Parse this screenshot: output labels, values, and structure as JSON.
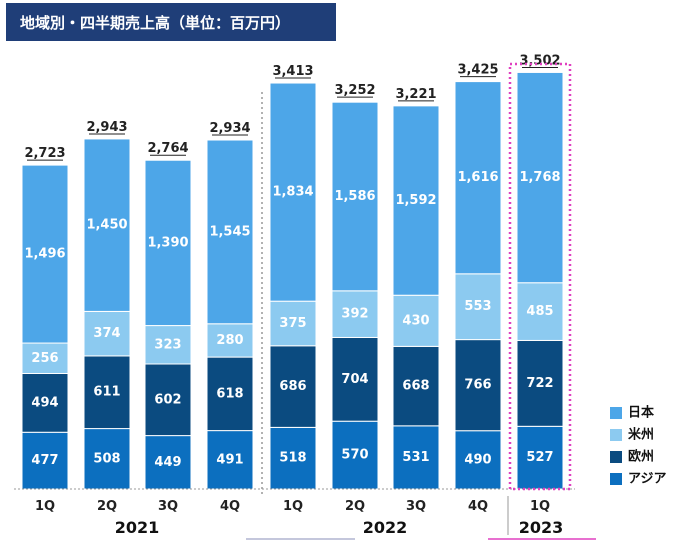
{
  "title": "地域別・四半期売上高（単位：百万円）",
  "colors": {
    "japan": "#4da6e8",
    "americas": "#8ccaf0",
    "europe": "#0b4b80",
    "asia": "#0c6fbf",
    "highlight": "#e040c0",
    "title_bg": "#1f3e78"
  },
  "chart_data": {
    "type": "bar",
    "stacked": true,
    "title": "地域別・四半期売上高（単位：百万円）",
    "categories": [
      "1Q",
      "2Q",
      "3Q",
      "4Q",
      "1Q",
      "2Q",
      "3Q",
      "4Q",
      "1Q"
    ],
    "years": [
      {
        "label": "2021",
        "quarters": 4
      },
      {
        "label": "2022",
        "quarters": 4
      },
      {
        "label": "2023",
        "quarters": 1
      }
    ],
    "series": [
      {
        "name": "アジア",
        "values": [
          477,
          508,
          449,
          491,
          518,
          570,
          531,
          490,
          527
        ]
      },
      {
        "name": "欧州",
        "values": [
          494,
          611,
          602,
          618,
          686,
          704,
          668,
          766,
          722
        ]
      },
      {
        "name": "米州",
        "values": [
          256,
          374,
          323,
          280,
          375,
          392,
          430,
          553,
          485
        ]
      },
      {
        "name": "日本",
        "values": [
          1496,
          1450,
          1390,
          1545,
          1834,
          1586,
          1592,
          1616,
          1768
        ]
      }
    ],
    "totals": [
      "2,723",
      "2,943",
      "2,764",
      "2,934",
      "3,413",
      "3,252",
      "3,221",
      "3,425",
      "3,502"
    ],
    "legend_order": [
      "日本",
      "米州",
      "欧州",
      "アジア"
    ],
    "legend_position": "right",
    "highlighted_category_index": 8,
    "ylim": [
      0,
      3800
    ]
  }
}
